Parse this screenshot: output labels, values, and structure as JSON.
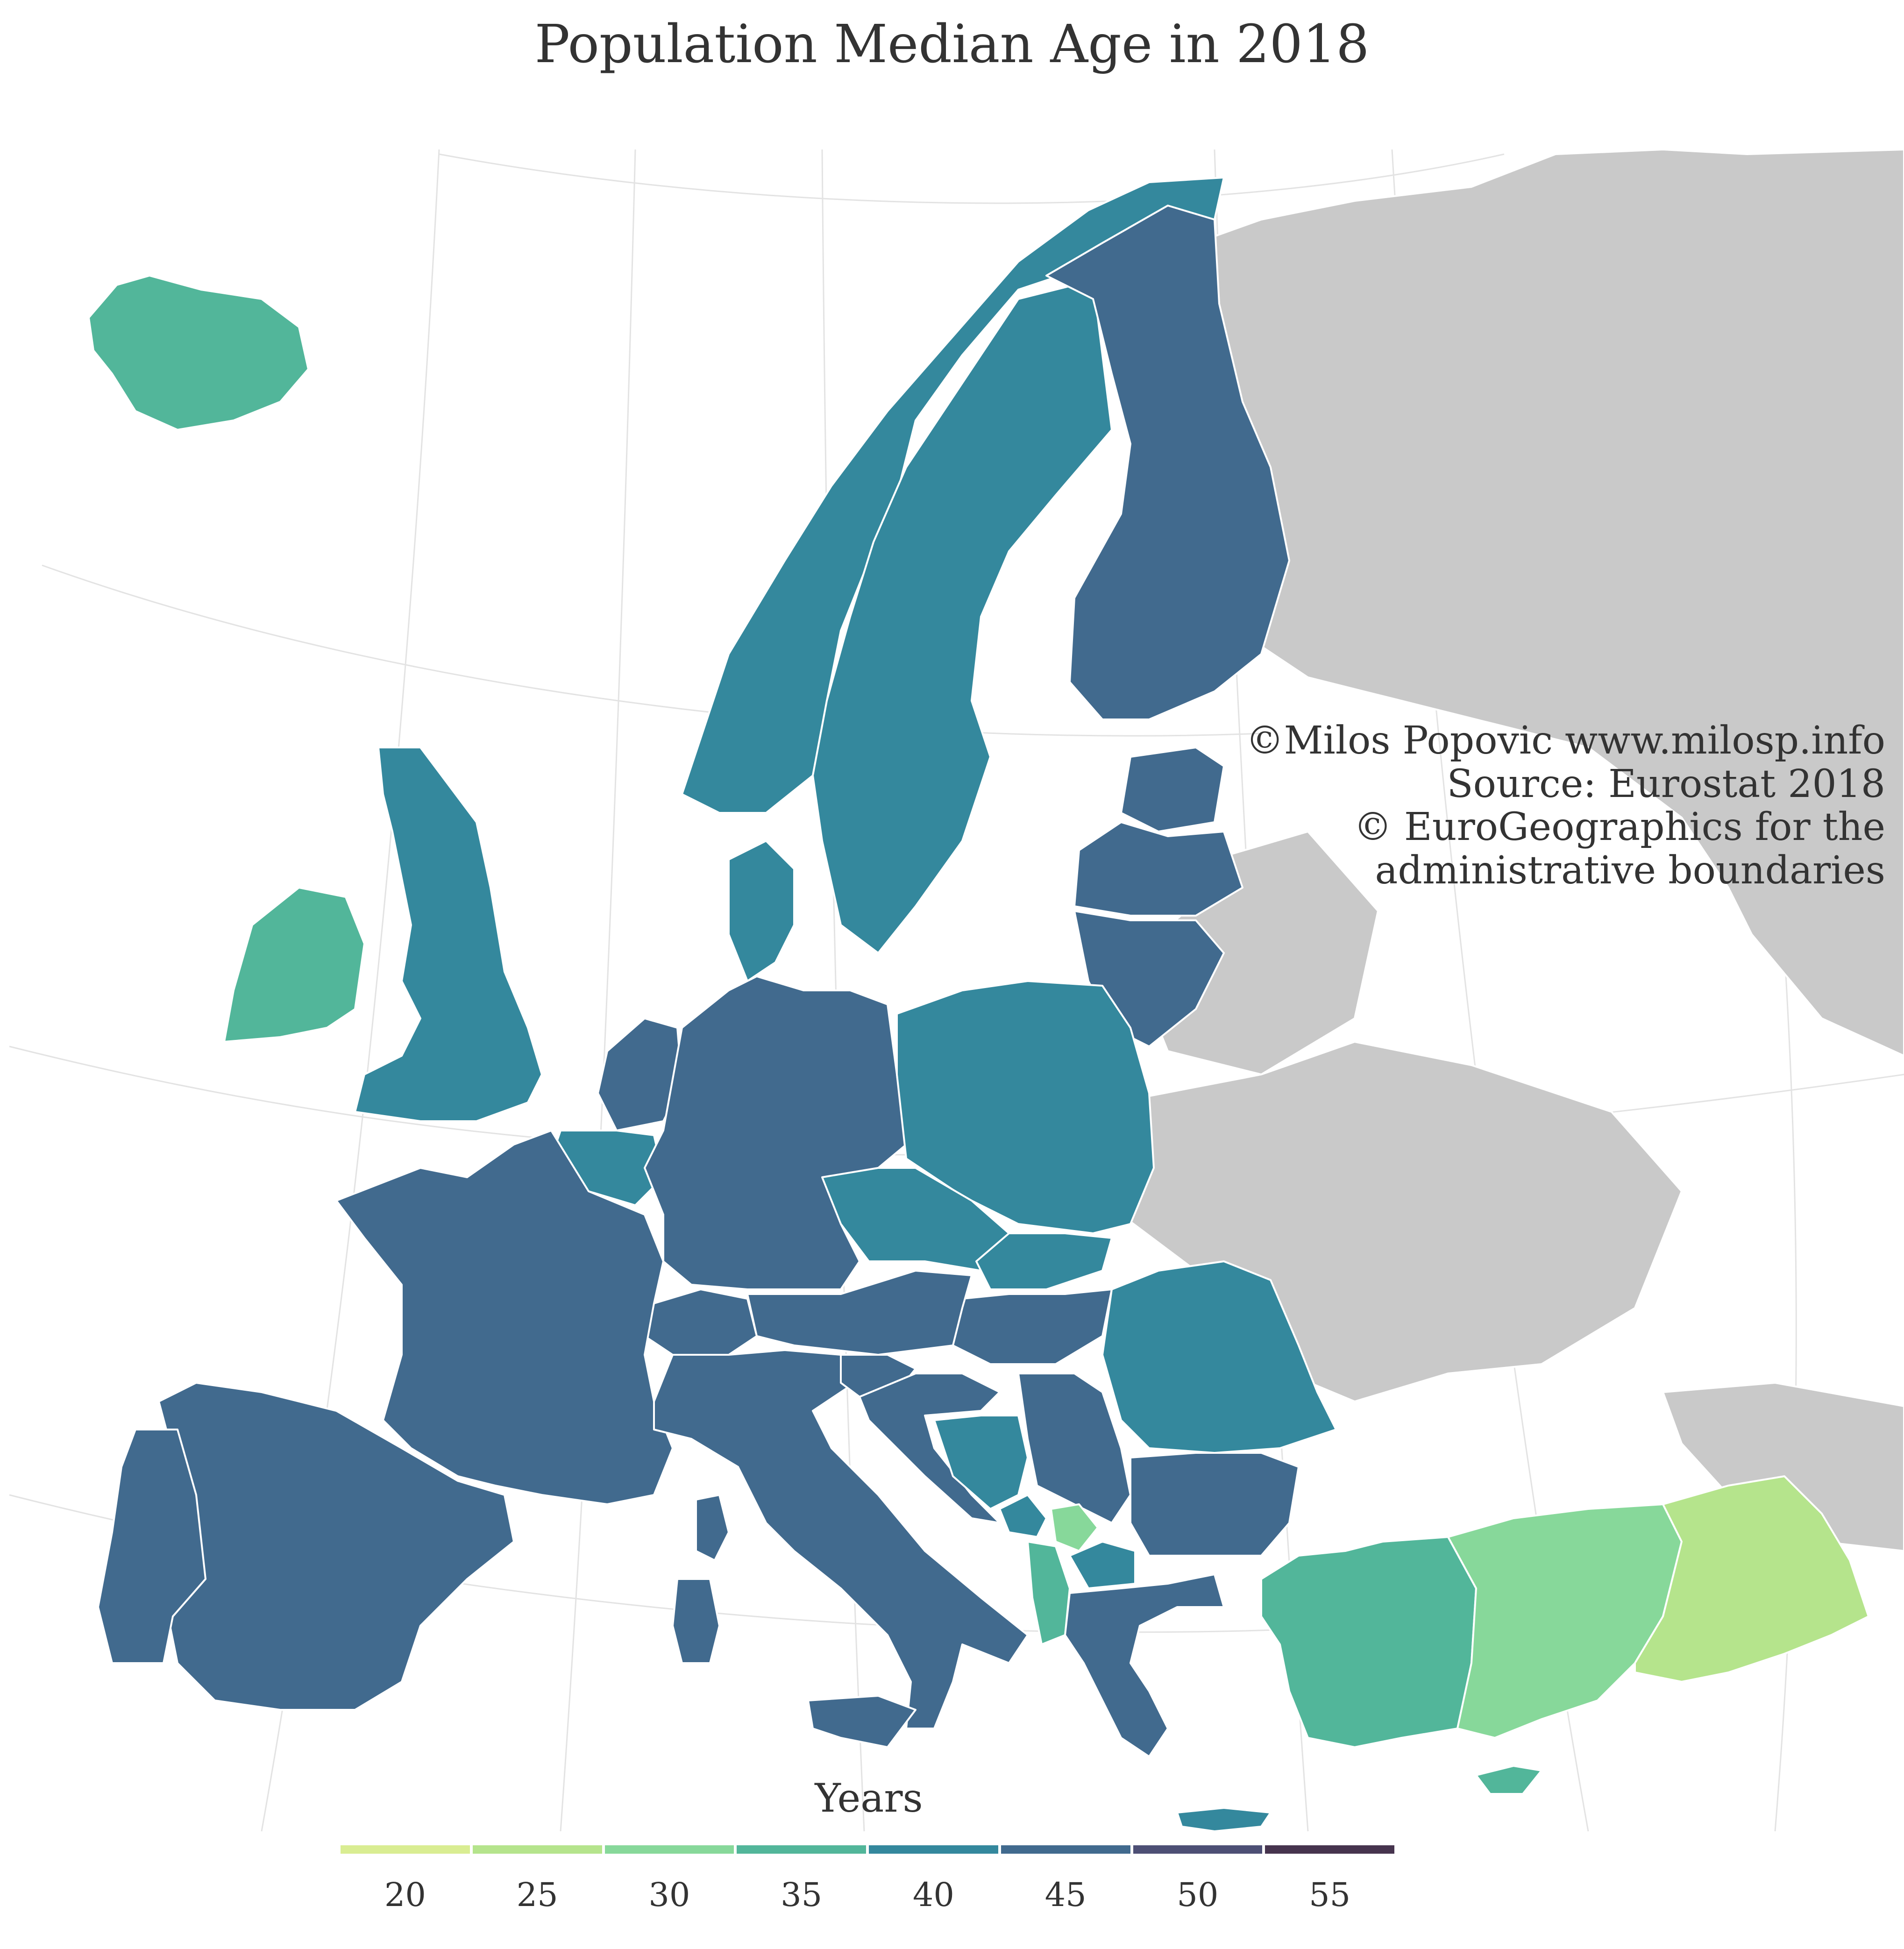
{
  "title": "Population Median Age in 2018",
  "credits": [
    "©Milos Popovic www.milosp.info",
    "Source: Eurostat 2018",
    "© EuroGeographics for the",
    "administrative boundaries"
  ],
  "legend": {
    "title": "Years",
    "ticks": [
      "20",
      "25",
      "30",
      "35",
      "40",
      "45",
      "50",
      "55"
    ],
    "colors": [
      "#d9ed92",
      "#b5e48c",
      "#87d89a",
      "#52b69a",
      "#34889d",
      "#416a8e",
      "#4d4f75",
      "#46344e"
    ]
  },
  "colors": {
    "no_data_land": "#c9c9c9",
    "border": "#ffffff",
    "graticule": "#e3e3e3",
    "sea": "#ffffff"
  },
  "map_regions": [
    {
      "id": "iceland",
      "value": 36
    },
    {
      "id": "norway",
      "value": 39
    },
    {
      "id": "sweden",
      "value": 41
    },
    {
      "id": "finland",
      "value": 44
    },
    {
      "id": "estonia",
      "value": 43
    },
    {
      "id": "latvia",
      "value": 44
    },
    {
      "id": "lithuania",
      "value": 44
    },
    {
      "id": "ireland",
      "value": 37
    },
    {
      "id": "great-britain",
      "value": 41
    },
    {
      "id": "denmark",
      "value": 42
    },
    {
      "id": "netherlands",
      "value": 43
    },
    {
      "id": "belgium",
      "value": 42
    },
    {
      "id": "germany",
      "value": 47
    },
    {
      "id": "poland",
      "value": 41
    },
    {
      "id": "czechia",
      "value": 42
    },
    {
      "id": "slovakia",
      "value": 41
    },
    {
      "id": "hungary",
      "value": 43
    },
    {
      "id": "austria",
      "value": 44
    },
    {
      "id": "switzerland",
      "value": 43
    },
    {
      "id": "france",
      "value": 43
    },
    {
      "id": "spain",
      "value": 44
    },
    {
      "id": "portugal",
      "value": 46
    },
    {
      "id": "italy",
      "value": 46
    },
    {
      "id": "sardinia",
      "value": 46
    },
    {
      "id": "corsica",
      "value": 44
    },
    {
      "id": "sicily",
      "value": 44
    },
    {
      "id": "slovenia",
      "value": 44
    },
    {
      "id": "croatia",
      "value": 43
    },
    {
      "id": "bosnia",
      "value": 42
    },
    {
      "id": "serbia",
      "value": 43
    },
    {
      "id": "montenegro",
      "value": 39
    },
    {
      "id": "kosovo",
      "value": 30
    },
    {
      "id": "north-macedonia",
      "value": 38
    },
    {
      "id": "albania",
      "value": 37
    },
    {
      "id": "romania",
      "value": 42
    },
    {
      "id": "bulgaria",
      "value": 45
    },
    {
      "id": "greece",
      "value": 45
    },
    {
      "id": "crete",
      "value": 42
    },
    {
      "id": "cyprus",
      "value": 37
    },
    {
      "id": "turkey-west",
      "value": 34
    },
    {
      "id": "turkey-central",
      "value": 30
    },
    {
      "id": "turkey-east",
      "value": 23
    }
  ]
}
